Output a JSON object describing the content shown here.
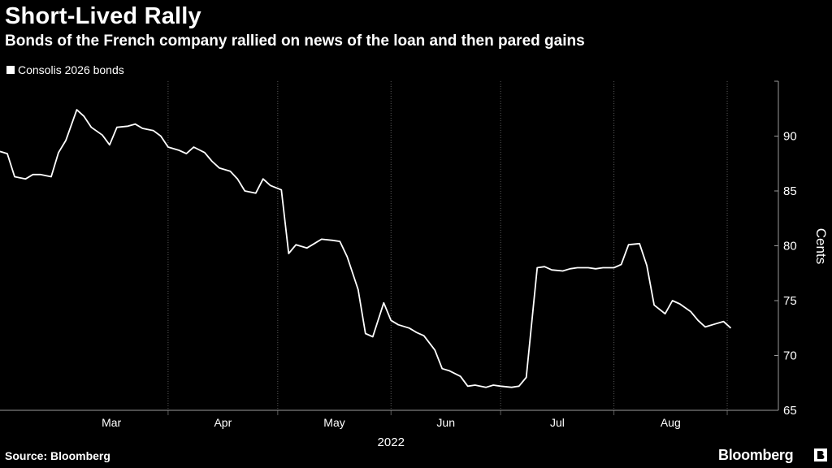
{
  "header": {
    "title": "Short-Lived Rally",
    "subtitle": "Bonds of the French company rallied on news of the loan and then pared gains"
  },
  "footer": {
    "source": "Source: Bloomberg",
    "brand": "Bloomberg"
  },
  "colors": {
    "background": "#000000",
    "line": "#ffffff",
    "grid": "#5a5a5a",
    "text": "#ffffff"
  },
  "chart_data": {
    "type": "line",
    "title": "Short-Lived Rally",
    "subtitle": "Bonds of the French company rallied on news of the loan and then pared gains",
    "xlabel": "2022",
    "ylabel": "Cents",
    "ylim": [
      65,
      95
    ],
    "yticks": [
      65,
      70,
      75,
      80,
      85,
      90
    ],
    "y_axis_side": "right",
    "grid": "vertical dotted",
    "legend_position": "top-left",
    "x_month_labels": [
      "Mar",
      "Apr",
      "May",
      "Jun",
      "Jul",
      "Aug"
    ],
    "x_year_label": "2022",
    "series": [
      {
        "name": "Consolis 2026 bonds",
        "x": [
          "2022-02-14",
          "2022-02-16",
          "2022-02-18",
          "2022-02-21",
          "2022-02-23",
          "2022-02-25",
          "2022-02-28",
          "2022-03-02",
          "2022-03-04",
          "2022-03-07",
          "2022-03-09",
          "2022-03-11",
          "2022-03-14",
          "2022-03-16",
          "2022-03-18",
          "2022-03-21",
          "2022-03-23",
          "2022-03-25",
          "2022-03-28",
          "2022-03-30",
          "2022-04-01",
          "2022-04-04",
          "2022-04-06",
          "2022-04-08",
          "2022-04-11",
          "2022-04-13",
          "2022-04-15",
          "2022-04-18",
          "2022-04-20",
          "2022-04-22",
          "2022-04-25",
          "2022-04-27",
          "2022-04-29",
          "2022-05-02",
          "2022-05-04",
          "2022-05-06",
          "2022-05-09",
          "2022-05-11",
          "2022-05-13",
          "2022-05-16",
          "2022-05-18",
          "2022-05-20",
          "2022-05-23",
          "2022-05-25",
          "2022-05-27",
          "2022-05-30",
          "2022-06-01",
          "2022-06-03",
          "2022-06-06",
          "2022-06-08",
          "2022-06-10",
          "2022-06-13",
          "2022-06-15",
          "2022-06-17",
          "2022-06-20",
          "2022-06-22",
          "2022-06-24",
          "2022-06-27",
          "2022-06-29",
          "2022-07-01",
          "2022-07-04",
          "2022-07-06",
          "2022-07-08",
          "2022-07-11",
          "2022-07-13",
          "2022-07-15",
          "2022-07-18",
          "2022-07-20",
          "2022-07-22",
          "2022-07-25",
          "2022-07-27",
          "2022-07-29",
          "2022-08-01",
          "2022-08-03",
          "2022-08-05",
          "2022-08-08",
          "2022-08-10",
          "2022-08-12",
          "2022-08-15",
          "2022-08-17",
          "2022-08-19",
          "2022-08-22",
          "2022-08-24",
          "2022-08-26",
          "2022-08-29",
          "2022-08-31",
          "2022-09-02"
        ],
        "values": [
          88.6,
          88.4,
          86.3,
          86.1,
          86.5,
          86.5,
          86.3,
          88.5,
          89.6,
          92.4,
          91.8,
          90.8,
          90.1,
          89.2,
          90.8,
          90.9,
          91.1,
          90.7,
          90.5,
          90.0,
          89.0,
          88.7,
          88.4,
          89.0,
          88.5,
          87.7,
          87.1,
          86.8,
          86.1,
          85.0,
          84.8,
          86.1,
          85.5,
          85.1,
          79.3,
          80.1,
          79.8,
          80.2,
          80.6,
          80.5,
          80.4,
          79.0,
          76.0,
          72.0,
          71.7,
          74.8,
          73.2,
          72.8,
          72.5,
          72.1,
          71.8,
          70.5,
          68.8,
          68.6,
          68.1,
          67.2,
          67.3,
          67.1,
          67.3,
          67.2,
          67.1,
          67.2,
          68.0,
          78.0,
          78.1,
          77.8,
          77.7,
          77.9,
          78.0,
          78.0,
          77.9,
          78.0,
          78.0,
          78.3,
          80.1,
          80.2,
          78.2,
          74.6,
          73.8,
          75.0,
          74.7,
          74.0,
          73.2,
          72.6,
          72.9,
          73.1,
          72.5
        ]
      }
    ]
  }
}
